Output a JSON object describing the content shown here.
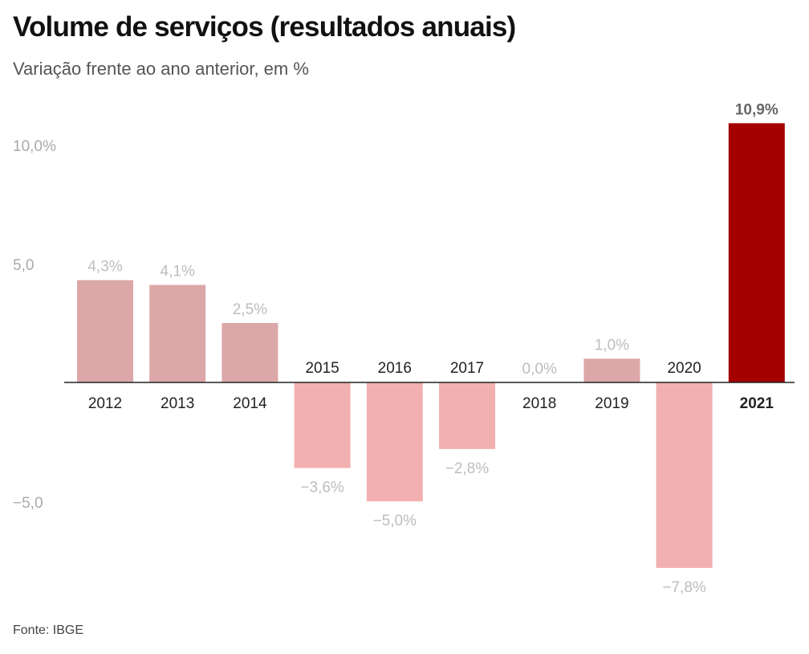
{
  "header": {
    "title": "Volume de serviços (resultados anuais)",
    "subtitle": "Variação frente ao ano anterior, em %"
  },
  "footer": {
    "source": "Fonte: IBGE"
  },
  "colors": {
    "positive": "#dca7a8",
    "negative": "#f3b0b1",
    "highlight": "#a50000",
    "value_label": "#bdbdbd",
    "highlight_label": "#666666",
    "axis_label": "#aaaaaa",
    "year_label": "#222222",
    "axis_line": "#222222"
  },
  "chart_data": {
    "type": "bar",
    "title": "Volume de serviços (resultados anuais)",
    "subtitle": "Variação frente ao ano anterior, em %",
    "xlabel": "",
    "ylabel": "",
    "ylim": [
      -9,
      11.5
    ],
    "grid": false,
    "y_ticks": [
      {
        "value": 10,
        "label": "10,0%"
      },
      {
        "value": 5,
        "label": "5,0"
      },
      {
        "value": -5,
        "label": "−5,0"
      }
    ],
    "categories": [
      "2012",
      "2013",
      "2014",
      "2015",
      "2016",
      "2017",
      "2018",
      "2019",
      "2020",
      "2021"
    ],
    "values": [
      4.3,
      4.1,
      2.5,
      -3.6,
      -5.0,
      -2.8,
      0.0,
      1.0,
      -7.8,
      10.9
    ],
    "labels": [
      "4,3%",
      "4,1%",
      "2,5%",
      "−3,6%",
      "−5,0%",
      "−2,8%",
      "0,0%",
      "1,0%",
      "−7,8%",
      "10,9%"
    ],
    "highlight": "2021"
  }
}
